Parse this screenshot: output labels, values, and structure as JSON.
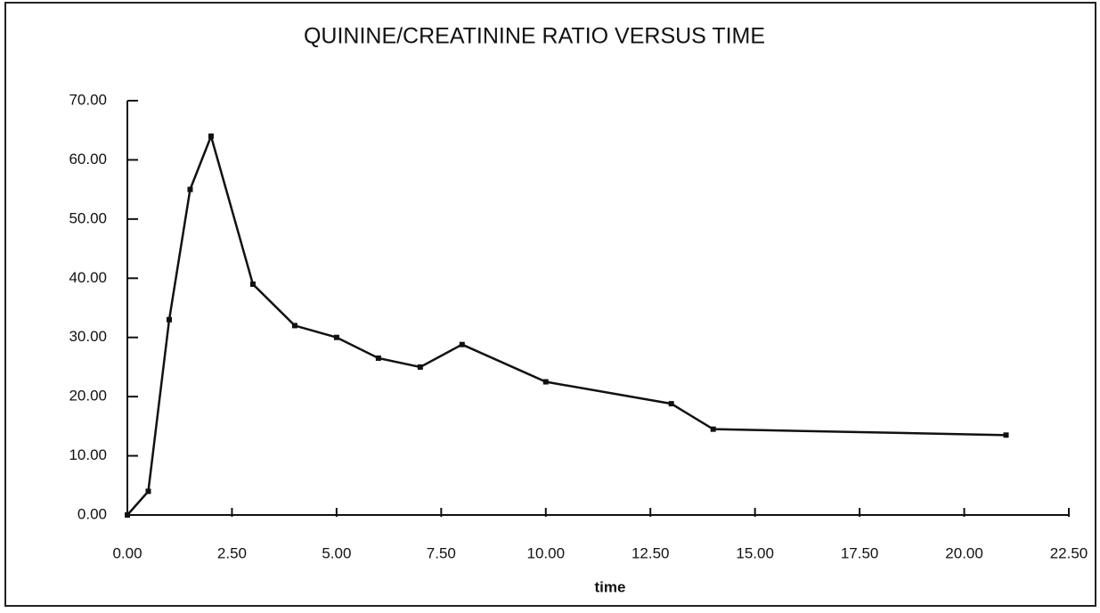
{
  "chart_data": {
    "type": "line",
    "title": "QUININE/CREATININE RATIO VERSUS TIME",
    "x_label": "time",
    "x": [
      0,
      0.5,
      1,
      1.5,
      2,
      3,
      4,
      5,
      6,
      7,
      8,
      10,
      13,
      14,
      21
    ],
    "series": [
      {
        "color": "#111111",
        "values": [
          0,
          4,
          33,
          55,
          64,
          39,
          32,
          30,
          26.5,
          25,
          28.8,
          22.5,
          18.8,
          14.5,
          13.5
        ]
      }
    ],
    "xlim": [
      0,
      22.5
    ],
    "xticks": [
      {
        "value": 0,
        "label": "0.00"
      },
      {
        "value": 2.5,
        "label": "2.50"
      },
      {
        "value": 5,
        "label": "5.00"
      },
      {
        "value": 7.5,
        "label": "7.50"
      },
      {
        "value": 10,
        "label": "10.00"
      },
      {
        "value": 12.5,
        "label": "12.50"
      },
      {
        "value": 15,
        "label": "15.00"
      },
      {
        "value": 17.5,
        "label": "17.50"
      },
      {
        "value": 20,
        "label": "20.00"
      },
      {
        "value": 22.5,
        "label": "22.50"
      }
    ],
    "ylim": [
      0,
      70
    ],
    "yticks": [
      {
        "value": 0,
        "label": "0.00"
      },
      {
        "value": 10,
        "label": "10.00"
      },
      {
        "value": 20,
        "label": "20.00"
      },
      {
        "value": 30,
        "label": "30.00"
      },
      {
        "value": 40,
        "label": "40.00"
      },
      {
        "value": 50,
        "label": "50.00"
      },
      {
        "value": 60,
        "label": "60.00"
      },
      {
        "value": 70,
        "label": "70.00"
      }
    ],
    "grid": false
  }
}
